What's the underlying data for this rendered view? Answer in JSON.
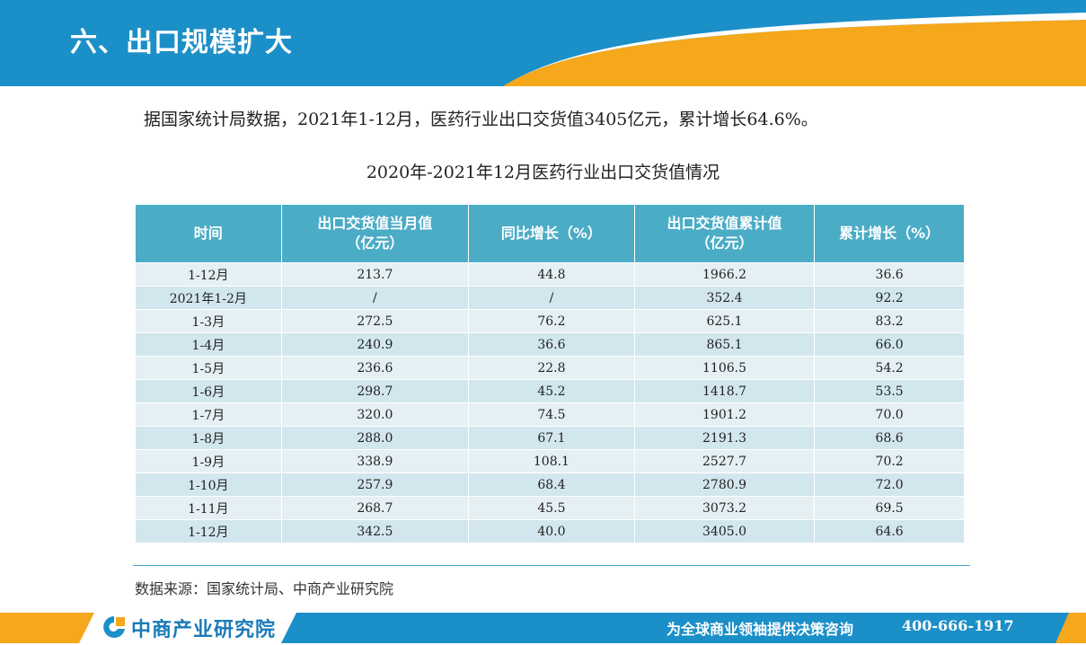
{
  "header": {
    "title": "六、出口规模扩大"
  },
  "intro": {
    "text": "据国家统计局数据，2021年1-12月，医药行业出口交货值3405亿元，累计增长64.6%。"
  },
  "table": {
    "title": "2020年-2021年12月医药行业出口交货值情况",
    "headers": [
      {
        "line1": "时间",
        "line2": ""
      },
      {
        "line1": "出口交货值当月值",
        "line2": "（亿元）"
      },
      {
        "line1": "同比增长（%）",
        "line2": ""
      },
      {
        "line1": "出口交货值累计值",
        "line2": "（亿元）"
      },
      {
        "line1": "累计增长（%）",
        "line2": ""
      }
    ],
    "rows": [
      [
        "1-12月",
        "213.7",
        "44.8",
        "1966.2",
        "36.6"
      ],
      [
        "2021年1-2月",
        "/",
        "/",
        "352.4",
        "92.2"
      ],
      [
        "1-3月",
        "272.5",
        "76.2",
        "625.1",
        "83.2"
      ],
      [
        "1-4月",
        "240.9",
        "36.6",
        "865.1",
        "66.0"
      ],
      [
        "1-5月",
        "236.6",
        "22.8",
        "1106.5",
        "54.2"
      ],
      [
        "1-6月",
        "298.7",
        "45.2",
        "1418.7",
        "53.5"
      ],
      [
        "1-7月",
        "320.0",
        "74.5",
        "1901.2",
        "70.0"
      ],
      [
        "1-8月",
        "288.0",
        "67.1",
        "2191.3",
        "68.6"
      ],
      [
        "1-9月",
        "338.9",
        "108.1",
        "2527.7",
        "70.2"
      ],
      [
        "1-10月",
        "257.9",
        "68.4",
        "2780.9",
        "72.0"
      ],
      [
        "1-11月",
        "268.7",
        "45.5",
        "3073.2",
        "69.5"
      ],
      [
        "1-12月",
        "342.5",
        "40.0",
        "3405.0",
        "64.6"
      ]
    ]
  },
  "source": {
    "text": "数据来源：国家统计局、中商产业研究院"
  },
  "footer": {
    "logo_text": "中商产业研究院",
    "logo_icon": "company-logo-icon",
    "slogan": "为全球商业领袖提供决策咨询",
    "phone": "400-666-1917"
  },
  "colors": {
    "primary_blue": "#1b8fc8",
    "accent_orange": "#f5a81c",
    "table_header": "#4bacc6",
    "row_light": "#e5f0f4",
    "row_dark": "#d2e6ee"
  }
}
